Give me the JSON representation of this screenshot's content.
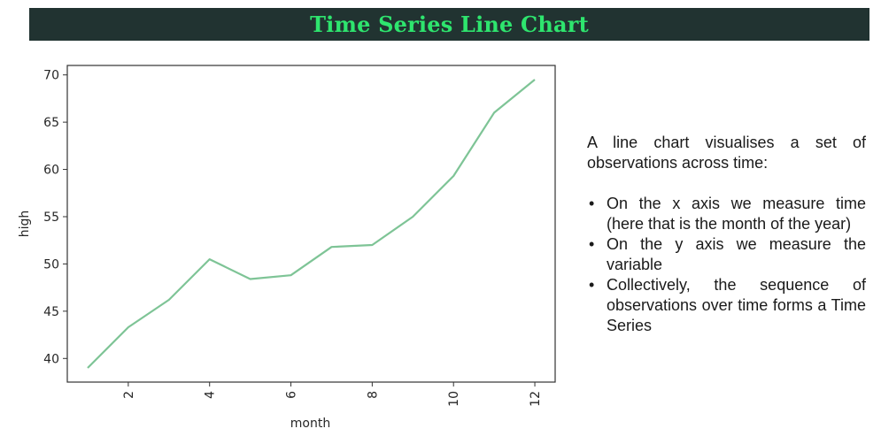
{
  "header": {
    "title": "Time Series Line Chart"
  },
  "description": {
    "intro": "A line chart visualises a set of observations across time:",
    "bullets": [
      "On the x axis we measure time (here that is the month of the year)",
      "On the y axis we measure the variable",
      "Collectively, the sequence of observations over time forms a Time Series"
    ]
  },
  "colors": {
    "title_bar": "#213331",
    "title_text": "#2ee56e",
    "line": "#7ec496"
  },
  "chart_data": {
    "type": "line",
    "xlabel": "month",
    "ylabel": "high",
    "x": [
      1,
      2,
      3,
      4,
      5,
      6,
      7,
      8,
      9,
      10,
      11,
      12
    ],
    "series": [
      {
        "values": [
          39.0,
          43.3,
          46.2,
          50.5,
          48.4,
          48.8,
          51.8,
          52.0,
          55.0,
          59.3,
          66.0,
          69.5
        ]
      }
    ],
    "xticks": [
      2,
      4,
      6,
      8,
      10,
      12
    ],
    "yticks": [
      40,
      45,
      50,
      55,
      60,
      65,
      70
    ],
    "xlim": [
      0.5,
      12.5
    ],
    "ylim": [
      37.5,
      71.0
    ],
    "grid": false,
    "legend": "none"
  }
}
